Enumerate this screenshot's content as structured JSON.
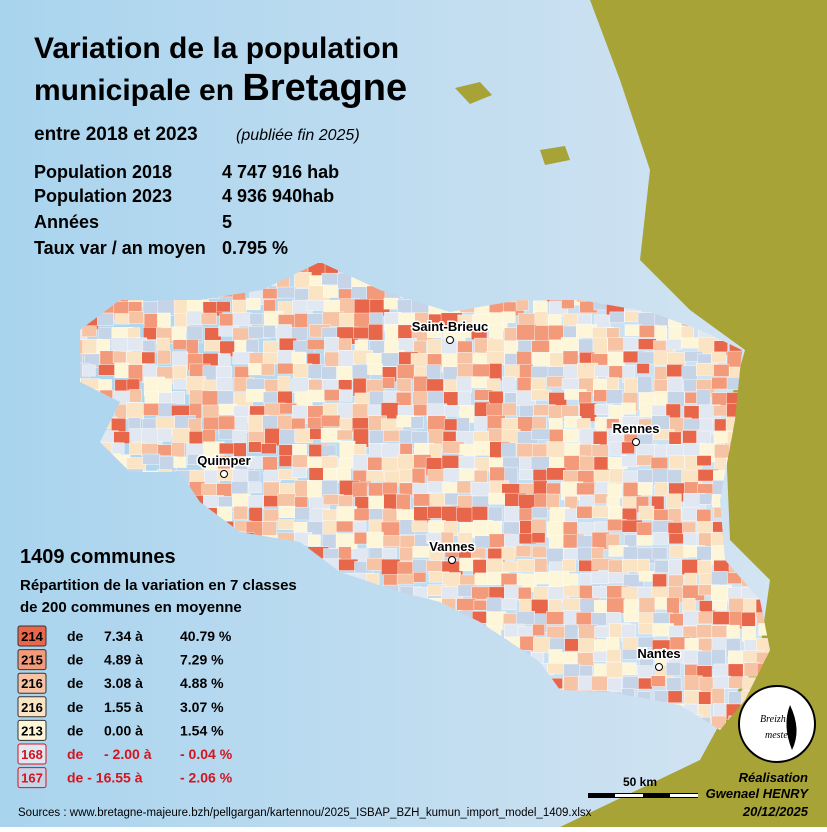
{
  "header": {
    "title_line1": "Variation de la population",
    "title_line2": "municipale en",
    "title_highlight": "Bretagne",
    "subtitle": "entre 2018 et 2023",
    "subtitle_note": "(publiée fin 2025)"
  },
  "stats": [
    [
      "Population 2018",
      "4 747 916 hab"
    ],
    [
      "Population 2023",
      "4 936 940hab"
    ],
    [
      "Années",
      "5"
    ],
    [
      "Taux var / an moyen",
      "0.795 %"
    ]
  ],
  "cities": [
    "Saint-Brieuc",
    "Rennes",
    "Quimper",
    "Vannes",
    "Nantes"
  ],
  "legend": {
    "heading": "1409 communes",
    "line1": "Répartition de la variation en 7 classes",
    "line2": "de 200 communes en moyenne",
    "classes": [
      [
        "214",
        "de",
        "7.34 à",
        "40.79 %"
      ],
      [
        "215",
        "de",
        "4.89 à",
        "7.29 %"
      ],
      [
        "216",
        "de",
        "3.08 à",
        "4.88 %"
      ],
      [
        "216",
        "de",
        "1.55 à",
        "3.07 %"
      ],
      [
        "213",
        "de",
        "0.00 à",
        "1.54 %"
      ],
      [
        "168",
        "de",
        "- 2.00 à",
        "- 0.04 %"
      ],
      [
        "167",
        "de - 16.55 à",
        "- 2.06 %"
      ]
    ]
  },
  "scale": "50 km",
  "logo": {
    "line1": "Breizh",
    "line2": "mester"
  },
  "credit": {
    "label": "Réalisation",
    "author": "Gwenael HENRY",
    "date": "20/12/2025"
  },
  "sources": "Sources : www.bretagne-majeure.bzh/pellgargan/kartennou/2025_ISBAP_BZH_kumun_import_model_1409.xlsx"
}
